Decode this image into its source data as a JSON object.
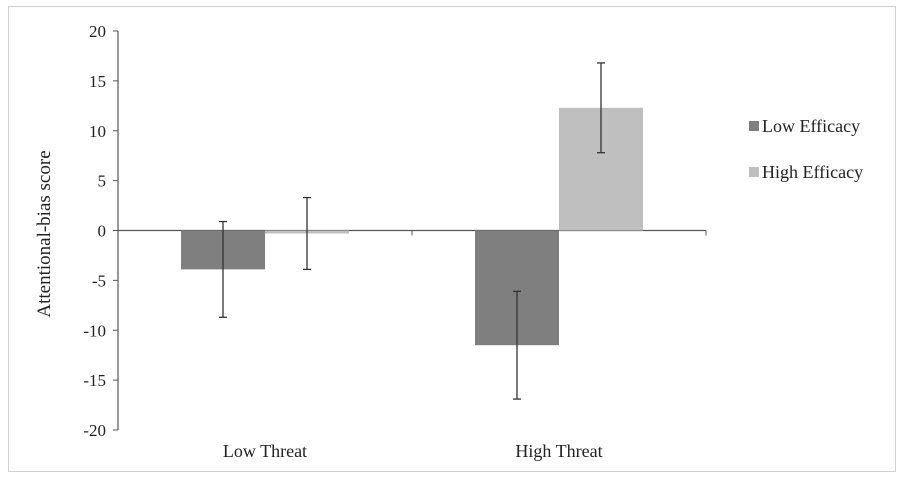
{
  "chart_data": {
    "type": "bar",
    "title": "",
    "xlabel": "",
    "ylabel": "Attentional-bias score",
    "ylim": [
      -20,
      20
    ],
    "yticks": [
      20,
      15,
      10,
      5,
      0,
      -5,
      -10,
      -15,
      -20
    ],
    "categories": [
      "Low Threat",
      "High Threat"
    ],
    "series": [
      {
        "name": "Low Efficacy",
        "values": [
          -3.9,
          -11.5
        ],
        "error": [
          4.8,
          5.4
        ],
        "color": "#7f7f7f"
      },
      {
        "name": "High Efficacy",
        "values": [
          -0.3,
          12.3
        ],
        "error": [
          3.6,
          4.5
        ],
        "color": "#bfbfbf"
      }
    ],
    "grid": false,
    "legend": "right",
    "error_bars": true
  }
}
